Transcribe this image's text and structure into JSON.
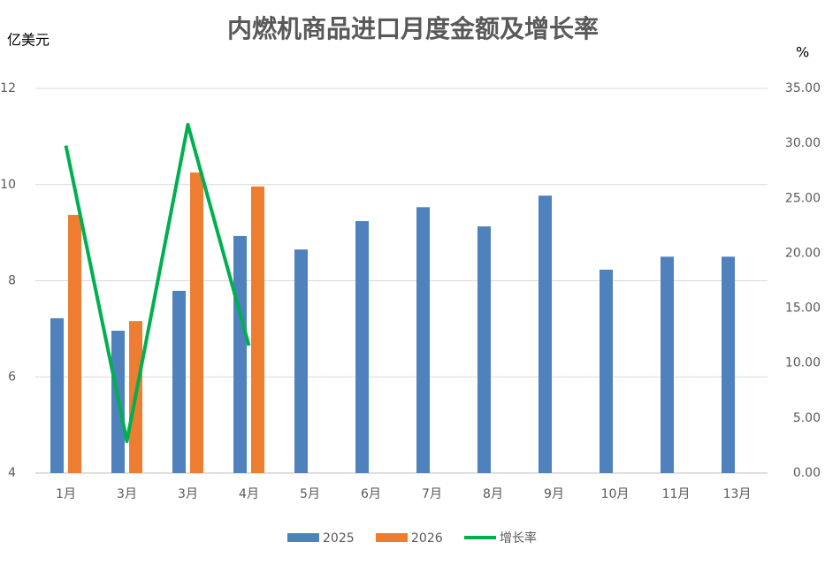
{
  "chart_data": {
    "type": "bar-line",
    "title": "内燃机商品进口月度金额及增长率",
    "y_label": "亿美元",
    "y2_label": "%",
    "categories": [
      "1月",
      "3月",
      "3月",
      "4月",
      "5月",
      "6月",
      "7月",
      "8月",
      "9月",
      "10月",
      "11月",
      "13月"
    ],
    "series": [
      {
        "name": "2025",
        "color": "#4f81bd",
        "type": "bar",
        "values": [
          7.22,
          6.96,
          7.79,
          8.93,
          8.65,
          9.24,
          9.53,
          9.13,
          9.77,
          8.23,
          8.5,
          8.5
        ]
      },
      {
        "name": "2026",
        "color": "#ed7d31",
        "type": "bar",
        "values": [
          9.37,
          7.16,
          10.25,
          9.96,
          null,
          null,
          null,
          null,
          null,
          null,
          null,
          null
        ]
      },
      {
        "name": "增长率",
        "color": "#00b050",
        "type": "line",
        "axis": "y2",
        "values": [
          29.8,
          2.9,
          31.7,
          11.6,
          null,
          null,
          null,
          null,
          null,
          null,
          null,
          null
        ]
      }
    ],
    "ylim": [
      4,
      12
    ],
    "yticks": [
      4,
      6,
      8,
      10,
      12
    ],
    "y2lim": [
      0,
      35
    ],
    "y2ticks": [
      {
        "value": 0,
        "label": "0.00"
      },
      {
        "value": 5,
        "label": "5.00"
      },
      {
        "value": 10,
        "label": "10.00"
      },
      {
        "value": 15,
        "label": "15.00"
      },
      {
        "value": 20,
        "label": "20.00"
      },
      {
        "value": 25,
        "label": "25.00"
      },
      {
        "value": 30,
        "label": "30.00"
      },
      {
        "value": 35,
        "label": "35.00"
      }
    ],
    "grid": true
  }
}
